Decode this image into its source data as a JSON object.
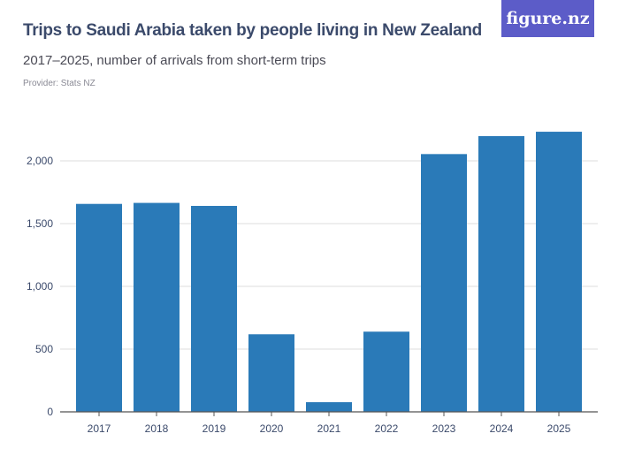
{
  "header": {
    "title": "Trips to Saudi Arabia taken by people living in New Zealand",
    "subtitle": "2017–2025, number of arrivals from short-term trips",
    "provider": "Provider: Stats NZ",
    "logo": "figure.nz"
  },
  "colors": {
    "bar": "#2a7ab8",
    "logo_bg": "#5c5cc8"
  },
  "chart_data": {
    "type": "bar",
    "title": "Trips to Saudi Arabia taken by people living in New Zealand",
    "categories": [
      "2017",
      "2018",
      "2019",
      "2020",
      "2021",
      "2022",
      "2023",
      "2024",
      "2025"
    ],
    "values": [
      1657,
      1665,
      1641,
      618,
      77,
      639,
      2054,
      2197,
      2232
    ],
    "ylim": [
      0,
      2250
    ],
    "yticks": [
      0,
      500,
      1000,
      1500,
      2000
    ],
    "ytick_labels": [
      "0",
      "500",
      "1,000",
      "1,500",
      "2,000"
    ],
    "xlabel": "",
    "ylabel": "",
    "grid": true
  }
}
